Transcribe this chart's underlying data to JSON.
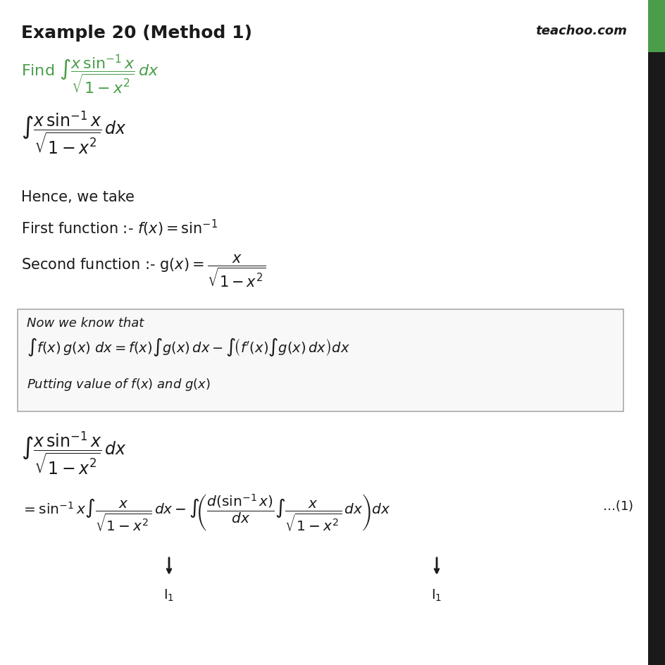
{
  "title": "Example 20 (Method 1)",
  "title_color": "#3d3d3d",
  "title_fontsize": 18,
  "green_color": "#4a9e4a",
  "black_color": "#1a1a1a",
  "bg_color": "#ffffff",
  "right_bar_green": "#4a9e4a",
  "right_bar_black": "#1a1a1a",
  "teachoo_text": "teachoo.com",
  "box_color": "#f8f8f8",
  "box_edge_color": "#aaaaaa"
}
